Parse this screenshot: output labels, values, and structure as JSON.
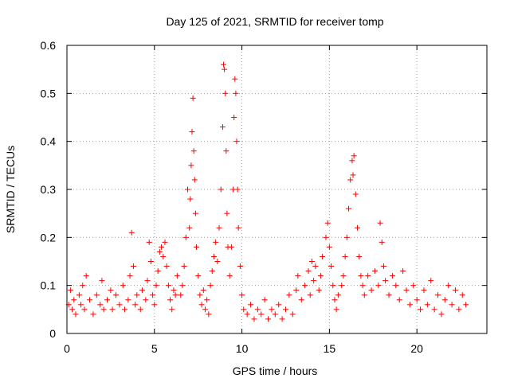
{
  "chart_data": {
    "type": "scatter",
    "title": "Day 125 of 2021, SRMTID for receiver tomp",
    "xlabel": "GPS time / hours",
    "ylabel": "SRMTID / TECUs",
    "xlim": [
      0,
      24
    ],
    "ylim": [
      0,
      0.6
    ],
    "xticks": [
      0,
      5,
      10,
      15,
      20
    ],
    "yticks": [
      0,
      0.1,
      0.2,
      0.3,
      0.4,
      0.5,
      0.6
    ],
    "xtick_labels": [
      "0",
      "5",
      "10",
      "15",
      "20"
    ],
    "ytick_labels": [
      "0",
      "0.1",
      "0.2",
      "0.3",
      "0.4",
      "0.5",
      "0.6"
    ],
    "grid": true,
    "marker": "+",
    "color": "#ff0000",
    "series": [
      {
        "name": "SRMTID",
        "points": [
          [
            0.1,
            0.06
          ],
          [
            0.2,
            0.09
          ],
          [
            0.3,
            0.05
          ],
          [
            0.4,
            0.07
          ],
          [
            0.5,
            0.04
          ],
          [
            0.7,
            0.08
          ],
          [
            0.8,
            0.06
          ],
          [
            0.9,
            0.1
          ],
          [
            1.0,
            0.05
          ],
          [
            1.1,
            0.12
          ],
          [
            1.3,
            0.07
          ],
          [
            1.5,
            0.04
          ],
          [
            1.7,
            0.08
          ],
          [
            1.9,
            0.06
          ],
          [
            2.0,
            0.11
          ],
          [
            2.1,
            0.05
          ],
          [
            2.3,
            0.07
          ],
          [
            2.5,
            0.09
          ],
          [
            2.6,
            0.05
          ],
          [
            2.8,
            0.08
          ],
          [
            3.0,
            0.06
          ],
          [
            3.2,
            0.1
          ],
          [
            3.3,
            0.05
          ],
          [
            3.5,
            0.07
          ],
          [
            3.6,
            0.12
          ],
          [
            3.7,
            0.21
          ],
          [
            3.8,
            0.14
          ],
          [
            3.9,
            0.06
          ],
          [
            4.0,
            0.08
          ],
          [
            4.2,
            0.05
          ],
          [
            4.3,
            0.09
          ],
          [
            4.5,
            0.07
          ],
          [
            4.6,
            0.11
          ],
          [
            4.7,
            0.19
          ],
          [
            4.8,
            0.15
          ],
          [
            4.9,
            0.08
          ],
          [
            5.0,
            0.06
          ],
          [
            5.1,
            0.1
          ],
          [
            5.2,
            0.13
          ],
          [
            5.3,
            0.17
          ],
          [
            5.4,
            0.18
          ],
          [
            5.5,
            0.16
          ],
          [
            5.6,
            0.19
          ],
          [
            5.7,
            0.14
          ],
          [
            5.8,
            0.1
          ],
          [
            5.9,
            0.07
          ],
          [
            6.0,
            0.05
          ],
          [
            6.1,
            0.09
          ],
          [
            6.2,
            0.08
          ],
          [
            6.3,
            0.12
          ],
          [
            6.5,
            0.08
          ],
          [
            6.6,
            0.1
          ],
          [
            6.7,
            0.14
          ],
          [
            6.8,
            0.2
          ],
          [
            6.9,
            0.3
          ],
          [
            7.0,
            0.22
          ],
          [
            7.05,
            0.28
          ],
          [
            7.1,
            0.35
          ],
          [
            7.15,
            0.42
          ],
          [
            7.2,
            0.49
          ],
          [
            7.25,
            0.38
          ],
          [
            7.3,
            0.32
          ],
          [
            7.35,
            0.25
          ],
          [
            7.4,
            0.18
          ],
          [
            7.5,
            0.12
          ],
          [
            7.6,
            0.08
          ],
          [
            7.7,
            0.06
          ],
          [
            7.8,
            0.09
          ],
          [
            7.9,
            0.05
          ],
          [
            8.0,
            0.07
          ],
          [
            8.1,
            0.04
          ],
          [
            8.2,
            0.1
          ],
          [
            8.3,
            0.13
          ],
          [
            8.4,
            0.16
          ],
          [
            8.5,
            0.19
          ],
          [
            8.6,
            0.15
          ],
          [
            8.7,
            0.22
          ],
          [
            8.8,
            0.3
          ],
          [
            8.9,
            0.43
          ],
          [
            8.95,
            0.56
          ],
          [
            9.0,
            0.55
          ],
          [
            9.05,
            0.5
          ],
          [
            9.1,
            0.38
          ],
          [
            9.15,
            0.25
          ],
          [
            9.2,
            0.18
          ],
          [
            9.3,
            0.12
          ],
          [
            9.4,
            0.18
          ],
          [
            9.5,
            0.3
          ],
          [
            9.55,
            0.45
          ],
          [
            9.6,
            0.53
          ],
          [
            9.65,
            0.5
          ],
          [
            9.7,
            0.4
          ],
          [
            9.75,
            0.3
          ],
          [
            9.8,
            0.22
          ],
          [
            9.9,
            0.14
          ],
          [
            10.0,
            0.08
          ],
          [
            10.1,
            0.05
          ],
          [
            10.3,
            0.04
          ],
          [
            10.5,
            0.06
          ],
          [
            10.7,
            0.03
          ],
          [
            10.9,
            0.05
          ],
          [
            11.1,
            0.04
          ],
          [
            11.3,
            0.07
          ],
          [
            11.5,
            0.03
          ],
          [
            11.7,
            0.05
          ],
          [
            11.9,
            0.04
          ],
          [
            12.1,
            0.06
          ],
          [
            12.3,
            0.03
          ],
          [
            12.5,
            0.05
          ],
          [
            12.7,
            0.08
          ],
          [
            12.9,
            0.04
          ],
          [
            13.1,
            0.09
          ],
          [
            13.2,
            0.12
          ],
          [
            13.4,
            0.07
          ],
          [
            13.6,
            0.1
          ],
          [
            13.8,
            0.13
          ],
          [
            13.9,
            0.08
          ],
          [
            14.0,
            0.15
          ],
          [
            14.1,
            0.11
          ],
          [
            14.2,
            0.14
          ],
          [
            14.4,
            0.09
          ],
          [
            14.5,
            0.12
          ],
          [
            14.6,
            0.16
          ],
          [
            14.8,
            0.2
          ],
          [
            14.9,
            0.23
          ],
          [
            15.0,
            0.18
          ],
          [
            15.1,
            0.14
          ],
          [
            15.2,
            0.1
          ],
          [
            15.3,
            0.07
          ],
          [
            15.4,
            0.05
          ],
          [
            15.5,
            0.08
          ],
          [
            15.7,
            0.1
          ],
          [
            15.8,
            0.12
          ],
          [
            15.9,
            0.16
          ],
          [
            16.0,
            0.2
          ],
          [
            16.1,
            0.26
          ],
          [
            16.2,
            0.32
          ],
          [
            16.3,
            0.36
          ],
          [
            16.35,
            0.33
          ],
          [
            16.4,
            0.37
          ],
          [
            16.5,
            0.29
          ],
          [
            16.6,
            0.22
          ],
          [
            16.7,
            0.16
          ],
          [
            16.8,
            0.12
          ],
          [
            16.9,
            0.1
          ],
          [
            17.0,
            0.08
          ],
          [
            17.2,
            0.12
          ],
          [
            17.4,
            0.09
          ],
          [
            17.6,
            0.13
          ],
          [
            17.8,
            0.1
          ],
          [
            17.9,
            0.23
          ],
          [
            18.0,
            0.19
          ],
          [
            18.1,
            0.14
          ],
          [
            18.2,
            0.11
          ],
          [
            18.4,
            0.08
          ],
          [
            18.6,
            0.12
          ],
          [
            18.8,
            0.1
          ],
          [
            19.0,
            0.07
          ],
          [
            19.2,
            0.13
          ],
          [
            19.4,
            0.09
          ],
          [
            19.6,
            0.06
          ],
          [
            19.8,
            0.1
          ],
          [
            20.0,
            0.07
          ],
          [
            20.2,
            0.05
          ],
          [
            20.4,
            0.09
          ],
          [
            20.6,
            0.06
          ],
          [
            20.8,
            0.11
          ],
          [
            21.0,
            0.05
          ],
          [
            21.2,
            0.08
          ],
          [
            21.4,
            0.04
          ],
          [
            21.6,
            0.07
          ],
          [
            21.8,
            0.1
          ],
          [
            22.0,
            0.06
          ],
          [
            22.2,
            0.09
          ],
          [
            22.4,
            0.05
          ],
          [
            22.6,
            0.08
          ],
          [
            22.8,
            0.06
          ]
        ]
      }
    ]
  }
}
